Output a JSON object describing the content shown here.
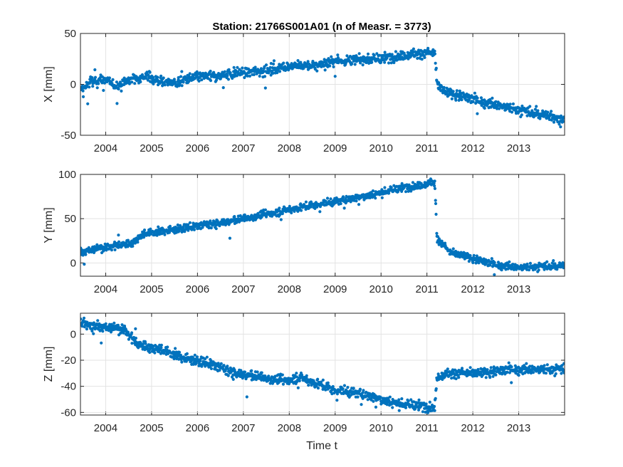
{
  "chart_data": {
    "type": "scatter",
    "title": "Station: 21766S001A01 (n of Measr. = 3773)",
    "xlabel": "Time t",
    "xlim": [
      2003.45,
      2014.0
    ],
    "xticks": [
      "2004",
      "2005",
      "2006",
      "2007",
      "2008",
      "2009",
      "2010",
      "2011",
      "2012",
      "2013"
    ],
    "grid": true,
    "marker_color": "#0072BD",
    "panels": [
      {
        "ylabel": "X [mm]",
        "ylim": [
          -50,
          50
        ],
        "yticks": [
          "50",
          "0",
          "-50"
        ],
        "trend": [
          [
            2003.45,
            -7
          ],
          [
            2003.7,
            3
          ],
          [
            2004.0,
            4
          ],
          [
            2004.25,
            -2
          ],
          [
            2004.55,
            5
          ],
          [
            2004.9,
            8
          ],
          [
            2005.2,
            3
          ],
          [
            2005.55,
            1
          ],
          [
            2005.9,
            7
          ],
          [
            2006.4,
            8
          ],
          [
            2007.0,
            12
          ],
          [
            2007.6,
            14
          ],
          [
            2008.0,
            18
          ],
          [
            2008.5,
            18
          ],
          [
            2009.0,
            23
          ],
          [
            2009.5,
            24
          ],
          [
            2010.0,
            25
          ],
          [
            2010.5,
            29
          ],
          [
            2011.17,
            31
          ],
          [
            2011.22,
            0
          ],
          [
            2011.4,
            -8
          ],
          [
            2011.8,
            -12
          ],
          [
            2012.2,
            -17
          ],
          [
            2012.7,
            -22
          ],
          [
            2013.2,
            -27
          ],
          [
            2014.0,
            -34
          ]
        ],
        "noise": 4.5
      },
      {
        "ylabel": "Y [mm]",
        "ylim": [
          -15,
          100
        ],
        "yticks": [
          "100",
          "50",
          "0"
        ],
        "trend": [
          [
            2003.45,
            12
          ],
          [
            2004.0,
            18
          ],
          [
            2004.55,
            22
          ],
          [
            2004.85,
            33
          ],
          [
            2005.5,
            38
          ],
          [
            2006.5,
            45
          ],
          [
            2007.5,
            55
          ],
          [
            2008.5,
            65
          ],
          [
            2009.5,
            74
          ],
          [
            2010.5,
            85
          ],
          [
            2011.17,
            91
          ],
          [
            2011.22,
            28
          ],
          [
            2011.5,
            12
          ],
          [
            2012.0,
            5
          ],
          [
            2012.5,
            -2
          ],
          [
            2013.0,
            -5
          ],
          [
            2013.5,
            -4
          ],
          [
            2014.0,
            -3
          ]
        ],
        "noise": 4
      },
      {
        "ylabel": "Z [mm]",
        "ylim": [
          -62,
          16
        ],
        "yticks": [
          "0",
          "-20",
          "-40",
          "-60"
        ],
        "trend": [
          [
            2003.45,
            9
          ],
          [
            2004.0,
            5
          ],
          [
            2004.4,
            4
          ],
          [
            2004.7,
            -8
          ],
          [
            2005.2,
            -12
          ],
          [
            2005.7,
            -18
          ],
          [
            2006.2,
            -22
          ],
          [
            2006.8,
            -30
          ],
          [
            2007.4,
            -33
          ],
          [
            2007.9,
            -36
          ],
          [
            2008.2,
            -33
          ],
          [
            2008.6,
            -38
          ],
          [
            2009.0,
            -43
          ],
          [
            2009.5,
            -45
          ],
          [
            2010.0,
            -50
          ],
          [
            2010.5,
            -54
          ],
          [
            2011.17,
            -56
          ],
          [
            2011.22,
            -32
          ],
          [
            2011.6,
            -30
          ],
          [
            2012.2,
            -30
          ],
          [
            2012.8,
            -27
          ],
          [
            2013.5,
            -27
          ],
          [
            2014.0,
            -27
          ]
        ],
        "noise": 3.5
      }
    ]
  }
}
